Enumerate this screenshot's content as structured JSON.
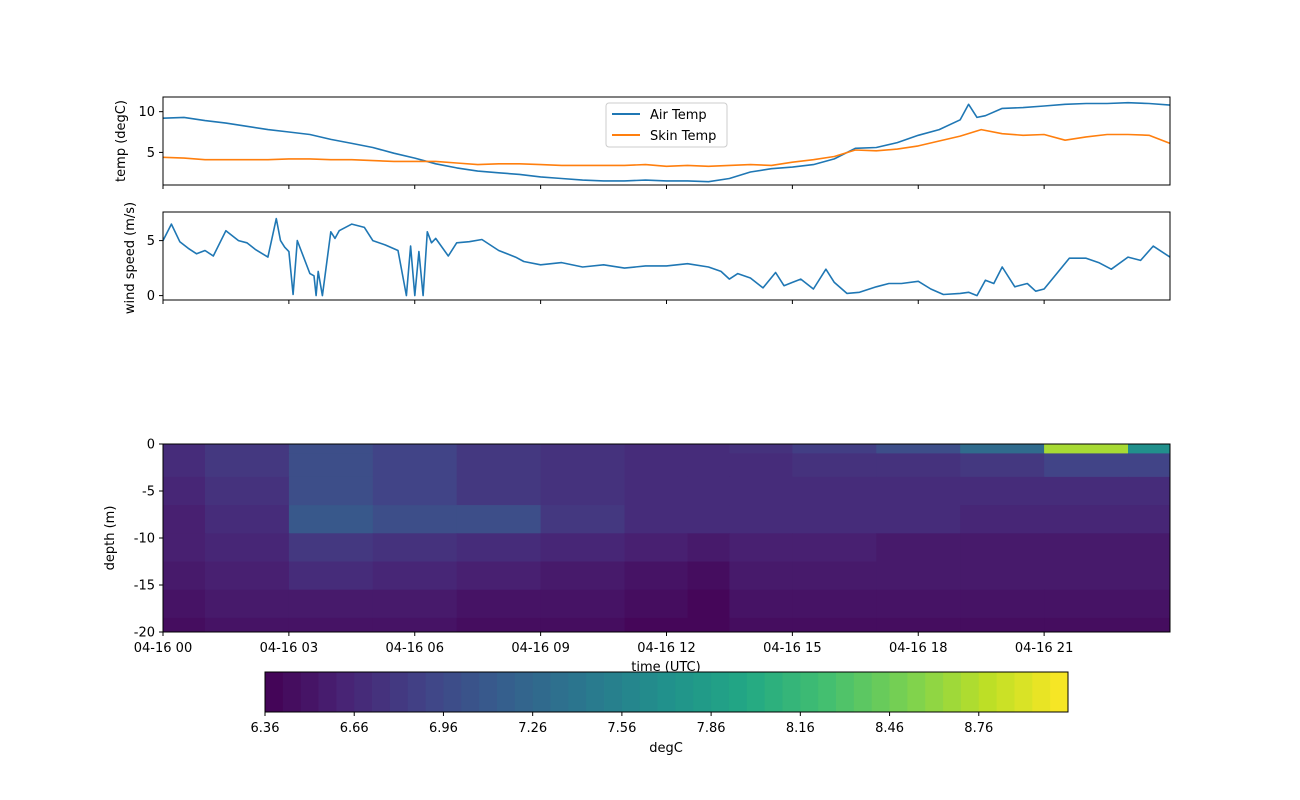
{
  "chart_data": [
    {
      "type": "line",
      "title": "",
      "xlabel": "",
      "ylabel": "temp (degC)",
      "xlim_hours": [
        0,
        24
      ],
      "ylim": [
        1,
        11.8
      ],
      "yticks": [
        5,
        10
      ],
      "grid": false,
      "legend": "upper-center",
      "series": [
        {
          "name": "Air Temp",
          "color": "#1f77b4",
          "x": [
            0,
            0.5,
            1,
            1.5,
            2,
            2.5,
            3,
            3.5,
            4,
            4.5,
            5,
            5.5,
            6,
            6.5,
            7,
            7.5,
            8,
            8.5,
            9,
            9.5,
            10,
            10.5,
            11,
            11.5,
            12,
            12.5,
            13,
            13.5,
            14,
            14.5,
            15,
            15.5,
            16,
            16.5,
            17,
            17.5,
            18,
            18.5,
            19,
            19.2,
            19.4,
            19.6,
            20,
            20.5,
            21,
            21.5,
            22,
            22.5,
            23,
            23.5,
            24
          ],
          "y": [
            9.2,
            9.3,
            8.9,
            8.6,
            8.2,
            7.8,
            7.5,
            7.2,
            6.6,
            6.1,
            5.6,
            4.9,
            4.3,
            3.6,
            3.1,
            2.7,
            2.5,
            2.3,
            2.0,
            1.8,
            1.6,
            1.5,
            1.5,
            1.6,
            1.5,
            1.5,
            1.4,
            1.8,
            2.6,
            3.0,
            3.2,
            3.5,
            4.2,
            5.5,
            5.6,
            6.2,
            7.1,
            7.8,
            9.0,
            10.9,
            9.3,
            9.5,
            10.4,
            10.5,
            10.7,
            10.9,
            11.0,
            11.0,
            11.1,
            11.0,
            10.8
          ]
        },
        {
          "name": "Skin Temp",
          "color": "#ff7f0e",
          "x": [
            0,
            0.5,
            1,
            1.5,
            2,
            2.5,
            3,
            3.5,
            4,
            4.5,
            5,
            5.5,
            6,
            6.5,
            7,
            7.5,
            8,
            8.5,
            9,
            9.5,
            10,
            10.5,
            11,
            11.5,
            12,
            12.5,
            13,
            13.5,
            14,
            14.5,
            15,
            15.5,
            16,
            16.5,
            17,
            17.5,
            18,
            18.5,
            19,
            19.5,
            20,
            20.5,
            21,
            21.5,
            22,
            22.5,
            23,
            23.5,
            24
          ],
          "y": [
            4.4,
            4.3,
            4.1,
            4.1,
            4.1,
            4.1,
            4.2,
            4.2,
            4.1,
            4.1,
            4.0,
            3.9,
            3.9,
            3.9,
            3.7,
            3.5,
            3.6,
            3.6,
            3.5,
            3.4,
            3.4,
            3.4,
            3.4,
            3.5,
            3.3,
            3.4,
            3.3,
            3.4,
            3.5,
            3.4,
            3.8,
            4.1,
            4.5,
            5.3,
            5.2,
            5.4,
            5.8,
            6.4,
            7.0,
            7.8,
            7.3,
            7.1,
            7.2,
            6.5,
            6.9,
            7.2,
            7.2,
            7.1,
            6.1
          ]
        }
      ]
    },
    {
      "type": "line",
      "title": "",
      "xlabel": "",
      "ylabel": "wind speed (m/s)",
      "xlim_hours": [
        0,
        24
      ],
      "ylim": [
        -0.4,
        7.6
      ],
      "yticks": [
        0,
        5
      ],
      "grid": false,
      "series": [
        {
          "name": "",
          "color": "#1f77b4",
          "x": [
            0,
            0.2,
            0.4,
            0.6,
            0.8,
            1.0,
            1.2,
            1.5,
            1.8,
            2.0,
            2.2,
            2.5,
            2.7,
            2.8,
            2.9,
            3.0,
            3.1,
            3.2,
            3.3,
            3.5,
            3.6,
            3.65,
            3.7,
            3.8,
            4.0,
            4.05,
            4.1,
            4.2,
            4.5,
            4.8,
            5.0,
            5.3,
            5.6,
            5.8,
            5.9,
            6.0,
            6.1,
            6.2,
            6.3,
            6.4,
            6.5,
            6.8,
            7.0,
            7.3,
            7.6,
            8.0,
            8.4,
            8.6,
            9.0,
            9.5,
            10.0,
            10.5,
            11.0,
            11.5,
            12.0,
            12.5,
            13.0,
            13.3,
            13.5,
            13.7,
            14.0,
            14.3,
            14.6,
            14.8,
            15.0,
            15.2,
            15.5,
            15.8,
            16.0,
            16.3,
            16.6,
            17.0,
            17.3,
            17.6,
            18.0,
            18.3,
            18.6,
            19.0,
            19.2,
            19.4,
            19.6,
            19.8,
            20.0,
            20.3,
            20.6,
            20.8,
            21.0,
            21.3,
            21.6,
            22.0,
            22.3,
            22.6,
            23.0,
            23.3,
            23.6,
            24.0
          ],
          "y": [
            5.0,
            6.5,
            4.9,
            4.3,
            3.8,
            4.1,
            3.6,
            5.9,
            5.0,
            4.8,
            4.2,
            3.5,
            7.0,
            5.0,
            4.4,
            4.0,
            0.1,
            5.0,
            4.0,
            2.0,
            1.8,
            0.0,
            2.2,
            0.0,
            5.8,
            5.5,
            5.2,
            5.9,
            6.5,
            6.2,
            5.0,
            4.6,
            4.1,
            0.0,
            4.5,
            0.0,
            4.0,
            0.0,
            5.8,
            4.8,
            5.2,
            3.6,
            4.8,
            4.9,
            5.1,
            4.1,
            3.5,
            3.1,
            2.8,
            3.0,
            2.6,
            2.8,
            2.5,
            2.7,
            2.7,
            2.9,
            2.6,
            2.2,
            1.5,
            2.0,
            1.6,
            0.7,
            2.1,
            0.9,
            1.2,
            1.5,
            0.6,
            2.4,
            1.2,
            0.2,
            0.3,
            0.8,
            1.1,
            1.1,
            1.3,
            0.6,
            0.1,
            0.2,
            0.3,
            0.0,
            1.4,
            1.1,
            2.6,
            0.8,
            1.1,
            0.4,
            0.6,
            2.0,
            3.4,
            3.4,
            3.0,
            2.4,
            3.5,
            3.2,
            4.5,
            3.5
          ]
        }
      ]
    },
    {
      "type": "heatmap",
      "title": "",
      "xlabel": "time (UTC)",
      "ylabel": "depth (m)",
      "xlim_hours": [
        0,
        24
      ],
      "ylim": [
        -20,
        0
      ],
      "xticks_hours": [
        0,
        3,
        6,
        9,
        12,
        15,
        18,
        21
      ],
      "xtick_labels": [
        "04-16 00",
        "04-16 03",
        "04-16 06",
        "04-16 09",
        "04-16 12",
        "04-16 15",
        "04-16 18",
        "04-16 21"
      ],
      "yticks": [
        0,
        -5,
        -10,
        -15,
        -20
      ],
      "colormap": "viridis",
      "colorbar_label": "degC",
      "color_range": [
        6.36,
        9.06
      ],
      "colorbar_ticks": [
        6.36,
        6.66,
        6.96,
        7.26,
        7.56,
        7.86,
        8.16,
        8.46,
        8.76
      ],
      "colorbar_tick_labels": [
        "6.36",
        "6.66",
        "6.96",
        "7.26",
        "7.56",
        "7.86",
        "8.16",
        "8.46",
        "8.76"
      ],
      "time_hours": [
        0,
        2,
        4,
        6,
        8,
        10,
        12,
        13,
        14,
        16,
        18,
        20,
        22,
        24
      ],
      "depth_m": [
        0,
        -2,
        -5,
        -8,
        -11,
        -14,
        -17,
        -20
      ],
      "values": [
        [
          6.7,
          6.8,
          7.0,
          6.9,
          6.8,
          6.75,
          6.7,
          6.7,
          6.75,
          6.85,
          7.0,
          7.3,
          8.7,
          7.7
        ],
        [
          6.7,
          6.8,
          7.0,
          6.9,
          6.8,
          6.75,
          6.7,
          6.7,
          6.7,
          6.75,
          6.75,
          6.8,
          6.9,
          6.9
        ],
        [
          6.65,
          6.75,
          7.0,
          6.9,
          6.8,
          6.75,
          6.7,
          6.7,
          6.7,
          6.7,
          6.7,
          6.7,
          6.7,
          6.7
        ],
        [
          6.6,
          6.7,
          7.1,
          7.0,
          7.0,
          6.8,
          6.7,
          6.7,
          6.7,
          6.7,
          6.7,
          6.65,
          6.65,
          6.65
        ],
        [
          6.6,
          6.65,
          6.8,
          6.75,
          6.7,
          6.65,
          6.6,
          6.55,
          6.6,
          6.6,
          6.55,
          6.55,
          6.55,
          6.55
        ],
        [
          6.55,
          6.6,
          6.7,
          6.65,
          6.6,
          6.55,
          6.5,
          6.45,
          6.55,
          6.55,
          6.55,
          6.55,
          6.55,
          6.55
        ],
        [
          6.5,
          6.55,
          6.55,
          6.55,
          6.5,
          6.5,
          6.45,
          6.4,
          6.5,
          6.5,
          6.5,
          6.5,
          6.5,
          6.5
        ],
        [
          6.45,
          6.5,
          6.5,
          6.5,
          6.45,
          6.45,
          6.4,
          6.4,
          6.45,
          6.45,
          6.45,
          6.45,
          6.45,
          6.45
        ]
      ]
    }
  ]
}
